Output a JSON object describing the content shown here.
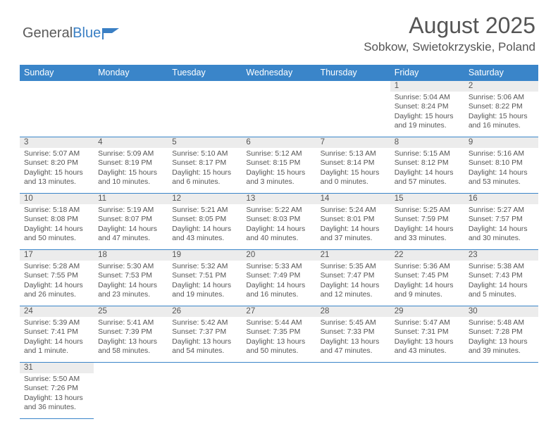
{
  "logo": {
    "text1": "General",
    "text2": "Blue"
  },
  "title": "August 2025",
  "location": "Sobkow, Swietokrzyskie, Poland",
  "weekdays": [
    "Sunday",
    "Monday",
    "Tuesday",
    "Wednesday",
    "Thursday",
    "Friday",
    "Saturday"
  ],
  "colors": {
    "header_bg": "#3a85c9",
    "border": "#3a85c9",
    "daybar": "#ececec",
    "text": "#555"
  },
  "leading_empty": 5,
  "days": [
    {
      "n": "1",
      "sr": "5:04 AM",
      "ss": "8:24 PM",
      "dl": "15 hours and 19 minutes."
    },
    {
      "n": "2",
      "sr": "5:06 AM",
      "ss": "8:22 PM",
      "dl": "15 hours and 16 minutes."
    },
    {
      "n": "3",
      "sr": "5:07 AM",
      "ss": "8:20 PM",
      "dl": "15 hours and 13 minutes."
    },
    {
      "n": "4",
      "sr": "5:09 AM",
      "ss": "8:19 PM",
      "dl": "15 hours and 10 minutes."
    },
    {
      "n": "5",
      "sr": "5:10 AM",
      "ss": "8:17 PM",
      "dl": "15 hours and 6 minutes."
    },
    {
      "n": "6",
      "sr": "5:12 AM",
      "ss": "8:15 PM",
      "dl": "15 hours and 3 minutes."
    },
    {
      "n": "7",
      "sr": "5:13 AM",
      "ss": "8:14 PM",
      "dl": "15 hours and 0 minutes."
    },
    {
      "n": "8",
      "sr": "5:15 AM",
      "ss": "8:12 PM",
      "dl": "14 hours and 57 minutes."
    },
    {
      "n": "9",
      "sr": "5:16 AM",
      "ss": "8:10 PM",
      "dl": "14 hours and 53 minutes."
    },
    {
      "n": "10",
      "sr": "5:18 AM",
      "ss": "8:08 PM",
      "dl": "14 hours and 50 minutes."
    },
    {
      "n": "11",
      "sr": "5:19 AM",
      "ss": "8:07 PM",
      "dl": "14 hours and 47 minutes."
    },
    {
      "n": "12",
      "sr": "5:21 AM",
      "ss": "8:05 PM",
      "dl": "14 hours and 43 minutes."
    },
    {
      "n": "13",
      "sr": "5:22 AM",
      "ss": "8:03 PM",
      "dl": "14 hours and 40 minutes."
    },
    {
      "n": "14",
      "sr": "5:24 AM",
      "ss": "8:01 PM",
      "dl": "14 hours and 37 minutes."
    },
    {
      "n": "15",
      "sr": "5:25 AM",
      "ss": "7:59 PM",
      "dl": "14 hours and 33 minutes."
    },
    {
      "n": "16",
      "sr": "5:27 AM",
      "ss": "7:57 PM",
      "dl": "14 hours and 30 minutes."
    },
    {
      "n": "17",
      "sr": "5:28 AM",
      "ss": "7:55 PM",
      "dl": "14 hours and 26 minutes."
    },
    {
      "n": "18",
      "sr": "5:30 AM",
      "ss": "7:53 PM",
      "dl": "14 hours and 23 minutes."
    },
    {
      "n": "19",
      "sr": "5:32 AM",
      "ss": "7:51 PM",
      "dl": "14 hours and 19 minutes."
    },
    {
      "n": "20",
      "sr": "5:33 AM",
      "ss": "7:49 PM",
      "dl": "14 hours and 16 minutes."
    },
    {
      "n": "21",
      "sr": "5:35 AM",
      "ss": "7:47 PM",
      "dl": "14 hours and 12 minutes."
    },
    {
      "n": "22",
      "sr": "5:36 AM",
      "ss": "7:45 PM",
      "dl": "14 hours and 9 minutes."
    },
    {
      "n": "23",
      "sr": "5:38 AM",
      "ss": "7:43 PM",
      "dl": "14 hours and 5 minutes."
    },
    {
      "n": "24",
      "sr": "5:39 AM",
      "ss": "7:41 PM",
      "dl": "14 hours and 1 minute."
    },
    {
      "n": "25",
      "sr": "5:41 AM",
      "ss": "7:39 PM",
      "dl": "13 hours and 58 minutes."
    },
    {
      "n": "26",
      "sr": "5:42 AM",
      "ss": "7:37 PM",
      "dl": "13 hours and 54 minutes."
    },
    {
      "n": "27",
      "sr": "5:44 AM",
      "ss": "7:35 PM",
      "dl": "13 hours and 50 minutes."
    },
    {
      "n": "28",
      "sr": "5:45 AM",
      "ss": "7:33 PM",
      "dl": "13 hours and 47 minutes."
    },
    {
      "n": "29",
      "sr": "5:47 AM",
      "ss": "7:31 PM",
      "dl": "13 hours and 43 minutes."
    },
    {
      "n": "30",
      "sr": "5:48 AM",
      "ss": "7:28 PM",
      "dl": "13 hours and 39 minutes."
    },
    {
      "n": "31",
      "sr": "5:50 AM",
      "ss": "7:26 PM",
      "dl": "13 hours and 36 minutes."
    }
  ],
  "labels": {
    "sunrise": "Sunrise:",
    "sunset": "Sunset:",
    "daylight": "Daylight:"
  }
}
